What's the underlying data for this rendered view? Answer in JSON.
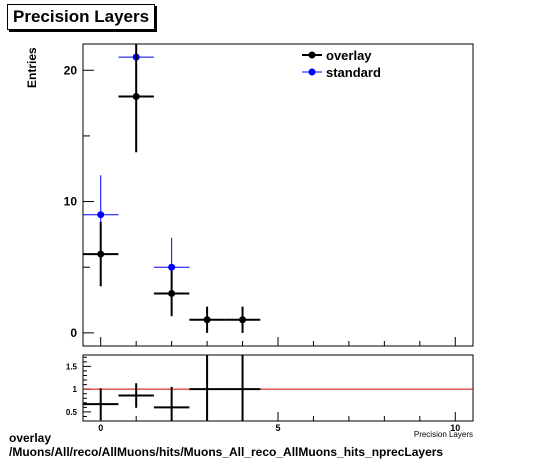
{
  "title": "Precision Layers",
  "footer": {
    "line1": "overlay",
    "line2": "/Muons/All/reco/AllMuons/hits/Muons_All_reco_AllMuons_hits_nprecLayers"
  },
  "colors": {
    "overlay": "#000000",
    "standard": "#0000ff",
    "ratio_line": "#cc0000"
  },
  "chart_data": [
    {
      "type": "scatter",
      "title": "Precision Layers",
      "xlabel": "Precision Layers",
      "ylabel": "Entries",
      "xlim": [
        -0.5,
        10.5
      ],
      "ylim": [
        -1,
        22
      ],
      "x_ticks": [
        "0",
        "5",
        "10"
      ],
      "y_ticks": [
        "0",
        "10",
        "20"
      ],
      "legend_position": "top-right",
      "series": [
        {
          "name": "overlay",
          "color": "#000000",
          "points": [
            {
              "x": 0,
              "y": 6,
              "err": 2.45
            },
            {
              "x": 1,
              "y": 18,
              "err": 4.24
            },
            {
              "x": 2,
              "y": 3,
              "err": 1.73
            },
            {
              "x": 3,
              "y": 1,
              "err": 1.0
            },
            {
              "x": 4,
              "y": 1,
              "err": 1.0
            }
          ]
        },
        {
          "name": "standard",
          "color": "#0000ff",
          "points": [
            {
              "x": 0,
              "y": 9,
              "err": 3.0
            },
            {
              "x": 1,
              "y": 21,
              "err": 4.58
            },
            {
              "x": 2,
              "y": 5,
              "err": 2.24
            }
          ]
        }
      ]
    },
    {
      "type": "scatter",
      "xlabel": "Precision Layers",
      "ylabel": "",
      "xlim": [
        -0.5,
        10.5
      ],
      "ylim": [
        0.3,
        1.75
      ],
      "x_ticks": [
        "0",
        "5",
        "10"
      ],
      "y_ticks": [
        "0.5",
        "1",
        "1.5"
      ],
      "reference_line": 1,
      "points": [
        {
          "x": 0,
          "y": 0.67,
          "err": 0.35
        },
        {
          "x": 1,
          "y": 0.86,
          "err": 0.27
        },
        {
          "x": 2,
          "y": 0.6,
          "err": 0.45
        },
        {
          "x": 3,
          "y": 1.0,
          "err": 1.4
        },
        {
          "x": 4,
          "y": 1.0,
          "err": 1.4
        }
      ]
    }
  ]
}
